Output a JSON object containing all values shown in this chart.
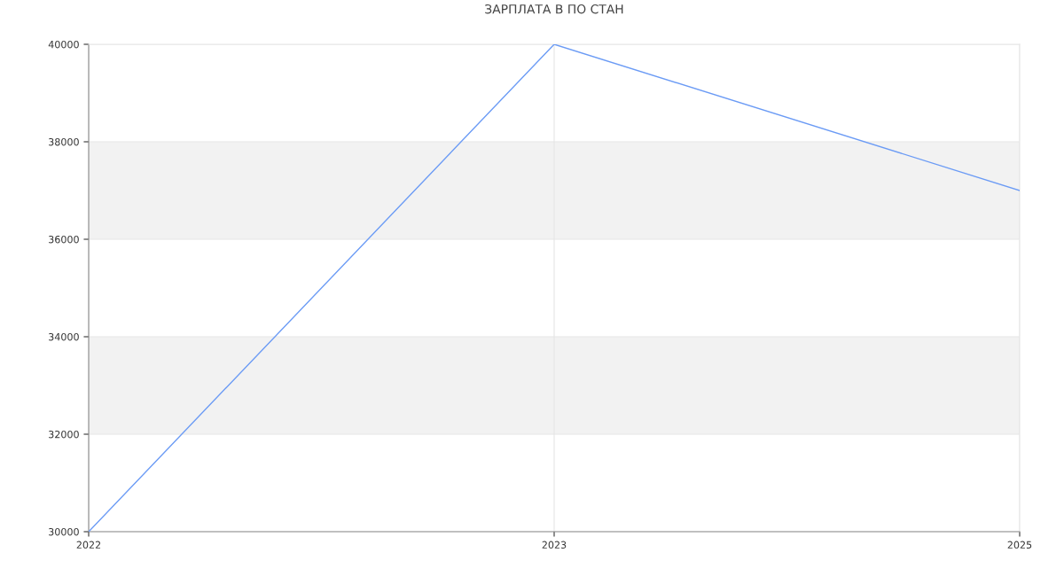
{
  "chart_data": {
    "type": "line",
    "title": "ЗАРПЛАТА В ПО СТАН",
    "categories": [
      "2022",
      "2023",
      "2025"
    ],
    "series": [
      {
        "color": "#6b9bf5",
        "values": [
          30000,
          40000,
          37000
        ]
      }
    ],
    "ylim": [
      30000,
      40000
    ],
    "yticks": [
      30000,
      32000,
      34000,
      36000,
      38000,
      40000
    ],
    "bands": [
      {
        "axis": "y",
        "from": 32000,
        "to": 34000,
        "color": "#f2f2f2"
      },
      {
        "axis": "y",
        "from": 36000,
        "to": 38000,
        "color": "#f2f2f2"
      }
    ],
    "grid": true,
    "marker": "none",
    "line_style": "solid"
  }
}
